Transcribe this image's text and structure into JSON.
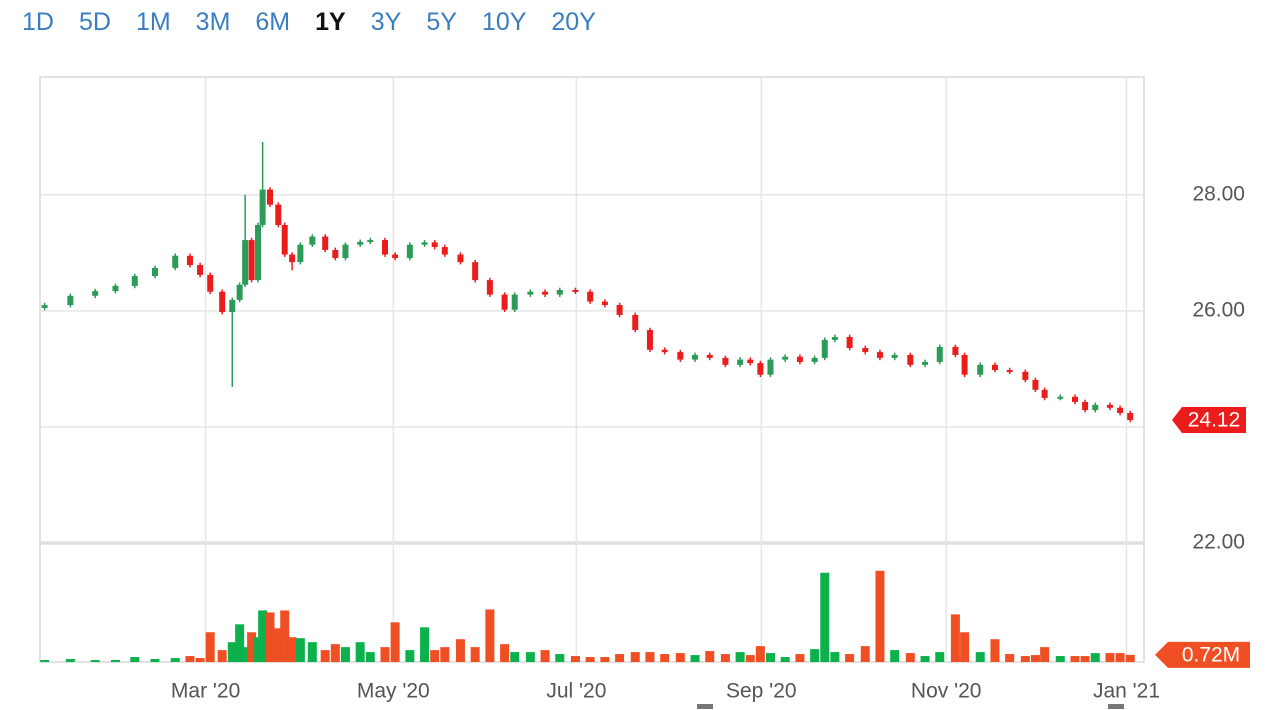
{
  "range_buttons": [
    "1D",
    "5D",
    "1M",
    "3M",
    "6M",
    "1Y",
    "3Y",
    "5Y",
    "10Y",
    "20Y"
  ],
  "selected_range": "1Y",
  "chart_data": {
    "type": "candlestick",
    "up_color": "#2b9b58",
    "down_color": "#ec1c1c",
    "volume_up_color": "#0cb14b",
    "volume_down_color": "#f04e23",
    "grid": true,
    "xlim": [
      1.2,
      13.2
    ],
    "xticks": [
      {
        "value": 3,
        "label": "Mar '20"
      },
      {
        "value": 5.04,
        "label": "May '20"
      },
      {
        "value": 7.03,
        "label": "Jul '20"
      },
      {
        "value": 9.04,
        "label": "Sep '20"
      },
      {
        "value": 11.05,
        "label": "Nov '20"
      },
      {
        "value": 13.01,
        "label": "Jan '21"
      }
    ],
    "ylim": [
      22,
      30.03
    ],
    "yticks": [
      {
        "value": 22,
        "label": "22.00"
      },
      {
        "value": 24,
        "label": "24.00"
      },
      {
        "value": 26,
        "label": "26.00"
      },
      {
        "value": 28,
        "label": "28.00"
      }
    ],
    "x": [
      1.25,
      1.53,
      1.8,
      2.02,
      2.23,
      2.45,
      2.67,
      2.83,
      2.94,
      3.05,
      3.18,
      3.29,
      3.37,
      3.43,
      3.5,
      3.57,
      3.62,
      3.7,
      3.79,
      3.86,
      3.94,
      4.03,
      4.16,
      4.3,
      4.41,
      4.52,
      4.68,
      4.79,
      4.95,
      5.06,
      5.22,
      5.38,
      5.49,
      5.6,
      5.77,
      5.93,
      6.09,
      6.25,
      6.36,
      6.53,
      6.69,
      6.85,
      7.02,
      7.18,
      7.34,
      7.5,
      7.67,
      7.83,
      7.99,
      8.16,
      8.32,
      8.48,
      8.65,
      8.81,
      8.92,
      9.03,
      9.14,
      9.3,
      9.46,
      9.62,
      9.73,
      9.84,
      10.0,
      10.17,
      10.33,
      10.49,
      10.66,
      10.82,
      10.98,
      11.15,
      11.25,
      11.42,
      11.58,
      11.74,
      11.91,
      12.02,
      12.12,
      12.29,
      12.45,
      12.56,
      12.67,
      12.83,
      12.94,
      13.05
    ],
    "open": [
      26.05,
      26.1,
      26.26,
      26.34,
      26.43,
      26.6,
      26.74,
      26.95,
      26.79,
      26.62,
      26.33,
      25.98,
      26.19,
      26.45,
      27.22,
      26.53,
      27.48,
      28.09,
      27.83,
      27.48,
      26.97,
      26.84,
      27.14,
      27.28,
      27.05,
      26.91,
      27.14,
      27.19,
      27.22,
      26.97,
      26.91,
      27.14,
      27.18,
      27.1,
      26.97,
      26.84,
      26.53,
      26.28,
      26.02,
      26.28,
      26.33,
      26.28,
      26.36,
      26.33,
      26.16,
      26.1,
      25.93,
      25.67,
      25.33,
      25.29,
      25.16,
      25.24,
      25.19,
      25.07,
      25.16,
      25.1,
      24.9,
      25.16,
      25.21,
      25.12,
      25.19,
      25.5,
      25.55,
      25.36,
      25.29,
      25.19,
      25.24,
      25.07,
      25.12,
      25.38,
      25.24,
      24.9,
      25.07,
      24.98,
      24.95,
      24.81,
      24.64,
      24.5,
      24.52,
      24.43,
      24.29,
      24.38,
      24.33,
      24.24
    ],
    "high": [
      26.14,
      26.3,
      26.38,
      26.47,
      26.64,
      26.78,
      26.99,
      26.99,
      26.83,
      26.66,
      26.37,
      26.23,
      26.49,
      28.0,
      27.26,
      27.52,
      28.91,
      28.13,
      27.87,
      27.52,
      27.01,
      27.18,
      27.32,
      27.32,
      27.09,
      27.18,
      27.23,
      27.26,
      27.26,
      27.01,
      27.18,
      27.22,
      27.22,
      27.14,
      27.01,
      26.88,
      26.57,
      26.32,
      26.32,
      26.37,
      26.37,
      26.4,
      26.4,
      26.37,
      26.2,
      26.14,
      25.97,
      25.71,
      25.37,
      25.33,
      25.28,
      25.28,
      25.23,
      25.2,
      25.2,
      25.14,
      25.2,
      25.25,
      25.25,
      25.23,
      25.54,
      25.59,
      25.59,
      25.4,
      25.33,
      25.28,
      25.28,
      25.16,
      25.42,
      25.42,
      25.28,
      25.11,
      25.11,
      25.02,
      24.99,
      24.85,
      24.68,
      24.56,
      24.56,
      24.47,
      24.42,
      24.42,
      24.37,
      24.28
    ],
    "low": [
      26.01,
      26.06,
      26.22,
      26.3,
      26.39,
      26.56,
      26.7,
      26.75,
      26.58,
      26.29,
      25.94,
      24.69,
      26.15,
      26.41,
      26.49,
      26.49,
      27.44,
      27.79,
      27.44,
      26.93,
      26.7,
      26.8,
      27.1,
      27.01,
      26.87,
      26.87,
      27.1,
      27.15,
      26.93,
      26.87,
      26.87,
      27.1,
      27.06,
      26.93,
      26.8,
      26.49,
      26.24,
      25.98,
      25.98,
      26.24,
      26.24,
      26.24,
      26.29,
      26.12,
      26.06,
      25.89,
      25.63,
      25.29,
      25.25,
      25.12,
      25.12,
      25.15,
      25.03,
      25.03,
      25.06,
      24.86,
      24.86,
      25.12,
      25.08,
      25.08,
      25.15,
      25.46,
      25.32,
      25.25,
      25.15,
      25.15,
      25.03,
      25.03,
      25.08,
      25.2,
      24.86,
      24.86,
      24.94,
      24.91,
      24.77,
      24.6,
      24.46,
      24.46,
      24.39,
      24.25,
      24.25,
      24.29,
      24.2,
      24.08
    ],
    "close": [
      26.1,
      26.26,
      26.34,
      26.43,
      26.6,
      26.74,
      26.95,
      26.79,
      26.62,
      26.33,
      25.98,
      26.19,
      26.45,
      27.22,
      26.53,
      27.48,
      28.09,
      27.83,
      27.48,
      26.97,
      26.84,
      27.14,
      27.28,
      27.05,
      26.91,
      27.14,
      27.19,
      27.22,
      26.97,
      26.91,
      27.14,
      27.18,
      27.1,
      26.97,
      26.84,
      26.53,
      26.28,
      26.02,
      26.28,
      26.33,
      26.28,
      26.36,
      26.33,
      26.16,
      26.1,
      25.93,
      25.67,
      25.33,
      25.29,
      25.16,
      25.24,
      25.19,
      25.07,
      25.16,
      25.1,
      24.9,
      25.16,
      25.21,
      25.12,
      25.19,
      25.5,
      25.55,
      25.36,
      25.29,
      25.19,
      25.24,
      25.07,
      25.12,
      25.38,
      25.24,
      24.9,
      25.07,
      24.98,
      24.95,
      24.81,
      24.64,
      24.5,
      24.52,
      24.43,
      24.29,
      24.38,
      24.33,
      24.24,
      24.12
    ],
    "last_price": 24.12,
    "volume": {
      "ylim": [
        0,
        12
      ],
      "values": [
        0.2,
        0.3,
        0.2,
        0.2,
        0.5,
        0.3,
        0.4,
        0.6,
        0.4,
        3.0,
        1.2,
        2.0,
        3.8,
        1.5,
        3.0,
        2.5,
        5.2,
        5.0,
        3.4,
        5.2,
        2.5,
        2.4,
        2.0,
        1.2,
        1.8,
        1.5,
        2.0,
        1.0,
        1.5,
        4.0,
        1.2,
        3.5,
        1.2,
        1.5,
        2.3,
        1.5,
        5.3,
        1.8,
        1.0,
        1.0,
        1.2,
        0.8,
        0.6,
        0.5,
        0.5,
        0.8,
        1.0,
        1.0,
        0.8,
        0.9,
        0.7,
        1.1,
        0.8,
        1.0,
        0.7,
        1.6,
        0.9,
        0.5,
        0.8,
        1.3,
        9.0,
        1.0,
        0.8,
        1.6,
        9.2,
        1.2,
        0.9,
        0.6,
        1.0,
        4.8,
        3.0,
        1.0,
        2.3,
        0.8,
        0.6,
        0.7,
        1.5,
        0.6,
        0.6,
        0.6,
        0.9,
        0.9,
        0.9,
        0.72
      ],
      "last": {
        "value": 0.72,
        "label": "0.72M"
      }
    }
  }
}
